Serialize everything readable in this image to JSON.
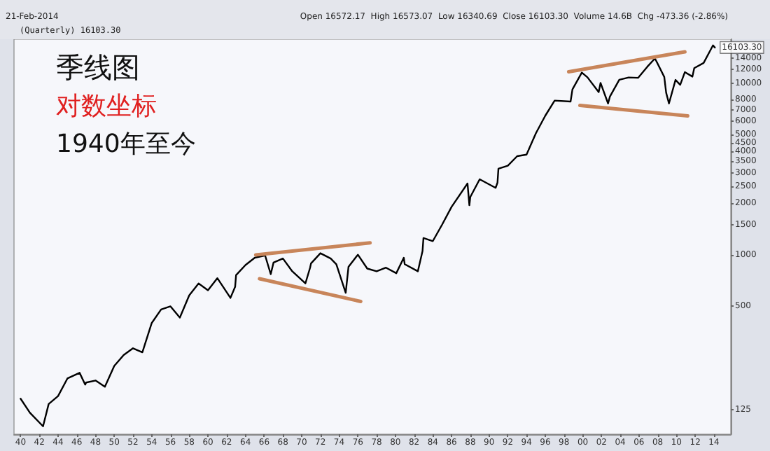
{
  "chart_data": {
    "type": "line",
    "title": "季线图",
    "annotations": [
      "对数坐标",
      "1940年至今",
      "21-Feb-2014",
      "(Quarterly) 16103.30",
      "Open 16572.17  High 16573.07  Low 16340.69  Close 16103.30  Volume 14.6B  Chg -473.36 (-2.86%)",
      {
        "text": "16103.30",
        "x": 2014.1,
        "y": 16103.3
      }
    ],
    "xlim": [
      1939.3,
      2015.8
    ],
    "xticks": [
      {
        "value": 1940,
        "label": "40"
      },
      {
        "value": 1942,
        "label": "42"
      },
      {
        "value": 1944,
        "label": "44"
      },
      {
        "value": 1946,
        "label": "46"
      },
      {
        "value": 1948,
        "label": "48"
      },
      {
        "value": 1950,
        "label": "50"
      },
      {
        "value": 1952,
        "label": "52"
      },
      {
        "value": 1954,
        "label": "54"
      },
      {
        "value": 1956,
        "label": "56"
      },
      {
        "value": 1958,
        "label": "58"
      },
      {
        "value": 1960,
        "label": "60"
      },
      {
        "value": 1962,
        "label": "62"
      },
      {
        "value": 1964,
        "label": "64"
      },
      {
        "value": 1966,
        "label": "66"
      },
      {
        "value": 1968,
        "label": "68"
      },
      {
        "value": 1970,
        "label": "70"
      },
      {
        "value": 1972,
        "label": "72"
      },
      {
        "value": 1974,
        "label": "74"
      },
      {
        "value": 1976,
        "label": "76"
      },
      {
        "value": 1978,
        "label": "78"
      },
      {
        "value": 1980,
        "label": "80"
      },
      {
        "value": 1982,
        "label": "82"
      },
      {
        "value": 1984,
        "label": "84"
      },
      {
        "value": 1986,
        "label": "86"
      },
      {
        "value": 1988,
        "label": "88"
      },
      {
        "value": 1990,
        "label": "90"
      },
      {
        "value": 1992,
        "label": "92"
      },
      {
        "value": 1994,
        "label": "94"
      },
      {
        "value": 1996,
        "label": "96"
      },
      {
        "value": 1998,
        "label": "98"
      },
      {
        "value": 2000,
        "label": "00"
      },
      {
        "value": 2002,
        "label": "02"
      },
      {
        "value": 2004,
        "label": "04"
      },
      {
        "value": 2006,
        "label": "06"
      },
      {
        "value": 2008,
        "label": "08"
      },
      {
        "value": 2010,
        "label": "10"
      },
      {
        "value": 2012,
        "label": "12"
      },
      {
        "value": 2014,
        "label": "14"
      }
    ],
    "ylim": [
      90,
      18000
    ],
    "yticks": [
      125,
      500,
      1000,
      1500,
      2000,
      2500,
      3000,
      3500,
      4000,
      4500,
      5000,
      6000,
      7000,
      8000,
      10000,
      12000,
      14000
    ],
    "log": "y",
    "grid": false,
    "marker": "none",
    "line_style": "solid",
    "series": [
      {
        "color": "#000000",
        "x": [
          1940,
          1941,
          1942.4,
          1943,
          1944,
          1945,
          1946.3,
          1946.9,
          1947,
          1948,
          1949,
          1950,
          1951,
          1952,
          1953,
          1954,
          1955,
          1956,
          1957,
          1958,
          1959,
          1960,
          1961,
          1962.4,
          1962.9,
          1963,
          1964,
          1965,
          1966.1,
          1966.7,
          1967,
          1968,
          1969,
          1970.4,
          1970.9,
          1971,
          1972,
          1973.1,
          1973.7,
          1974.7,
          1975,
          1976,
          1977,
          1978,
          1979,
          1980.1,
          1980.9,
          1981,
          1982.4,
          1982.9,
          1983,
          1984,
          1985,
          1986,
          1987.7,
          1987.9,
          1988,
          1989,
          1990.7,
          1990.9,
          1991,
          1992,
          1993,
          1994,
          1995,
          1996,
          1997,
          1998.7,
          1998.9,
          1999.9,
          2000.5,
          2001.7,
          2001.9,
          2002.7,
          2002.9,
          2003.9,
          2004.9,
          2005.9,
          2006.9,
          2007.7,
          2007.9,
          2008.7,
          2008.9,
          2009.2,
          2009.9,
          2010.4,
          2010.9,
          2011.7,
          2011.9,
          2012.9,
          2013.9,
          2014.1
        ],
        "values": [
          145,
          120,
          100,
          135,
          150,
          190,
          205,
          175,
          180,
          185,
          170,
          225,
          260,
          285,
          270,
          400,
          480,
          500,
          430,
          580,
          680,
          620,
          730,
          560,
          650,
          760,
          870,
          960,
          990,
          770,
          900,
          950,
          800,
          680,
          840,
          890,
          1020,
          950,
          880,
          600,
          850,
          1000,
          830,
          800,
          840,
          780,
          960,
          880,
          800,
          1050,
          1250,
          1200,
          1500,
          1900,
          2600,
          1940,
          2170,
          2750,
          2450,
          2630,
          3170,
          3300,
          3750,
          3830,
          5100,
          6450,
          7900,
          7800,
          9180,
          11500,
          10800,
          8850,
          10020,
          7600,
          8340,
          10450,
          10780,
          10720,
          12460,
          13900,
          13260,
          10850,
          8780,
          7600,
          10430,
          9770,
          11580,
          10900,
          12220,
          13100,
          16580,
          16103
        ]
      },
      {
        "color": "#c8855a",
        "x": [
          1965.1,
          1977.3
        ],
        "values": [
          998,
          1173
        ]
      },
      {
        "color": "#c8855a",
        "x": [
          1965.5,
          1976.3
        ],
        "values": [
          724,
          534
        ]
      },
      {
        "color": "#c8855a",
        "x": [
          1998.5,
          2010.9
        ],
        "values": [
          11630,
          15190
        ]
      },
      {
        "color": "#c8855a",
        "x": [
          1999.7,
          2011.2
        ],
        "values": [
          7415,
          6430
        ]
      }
    ]
  }
}
